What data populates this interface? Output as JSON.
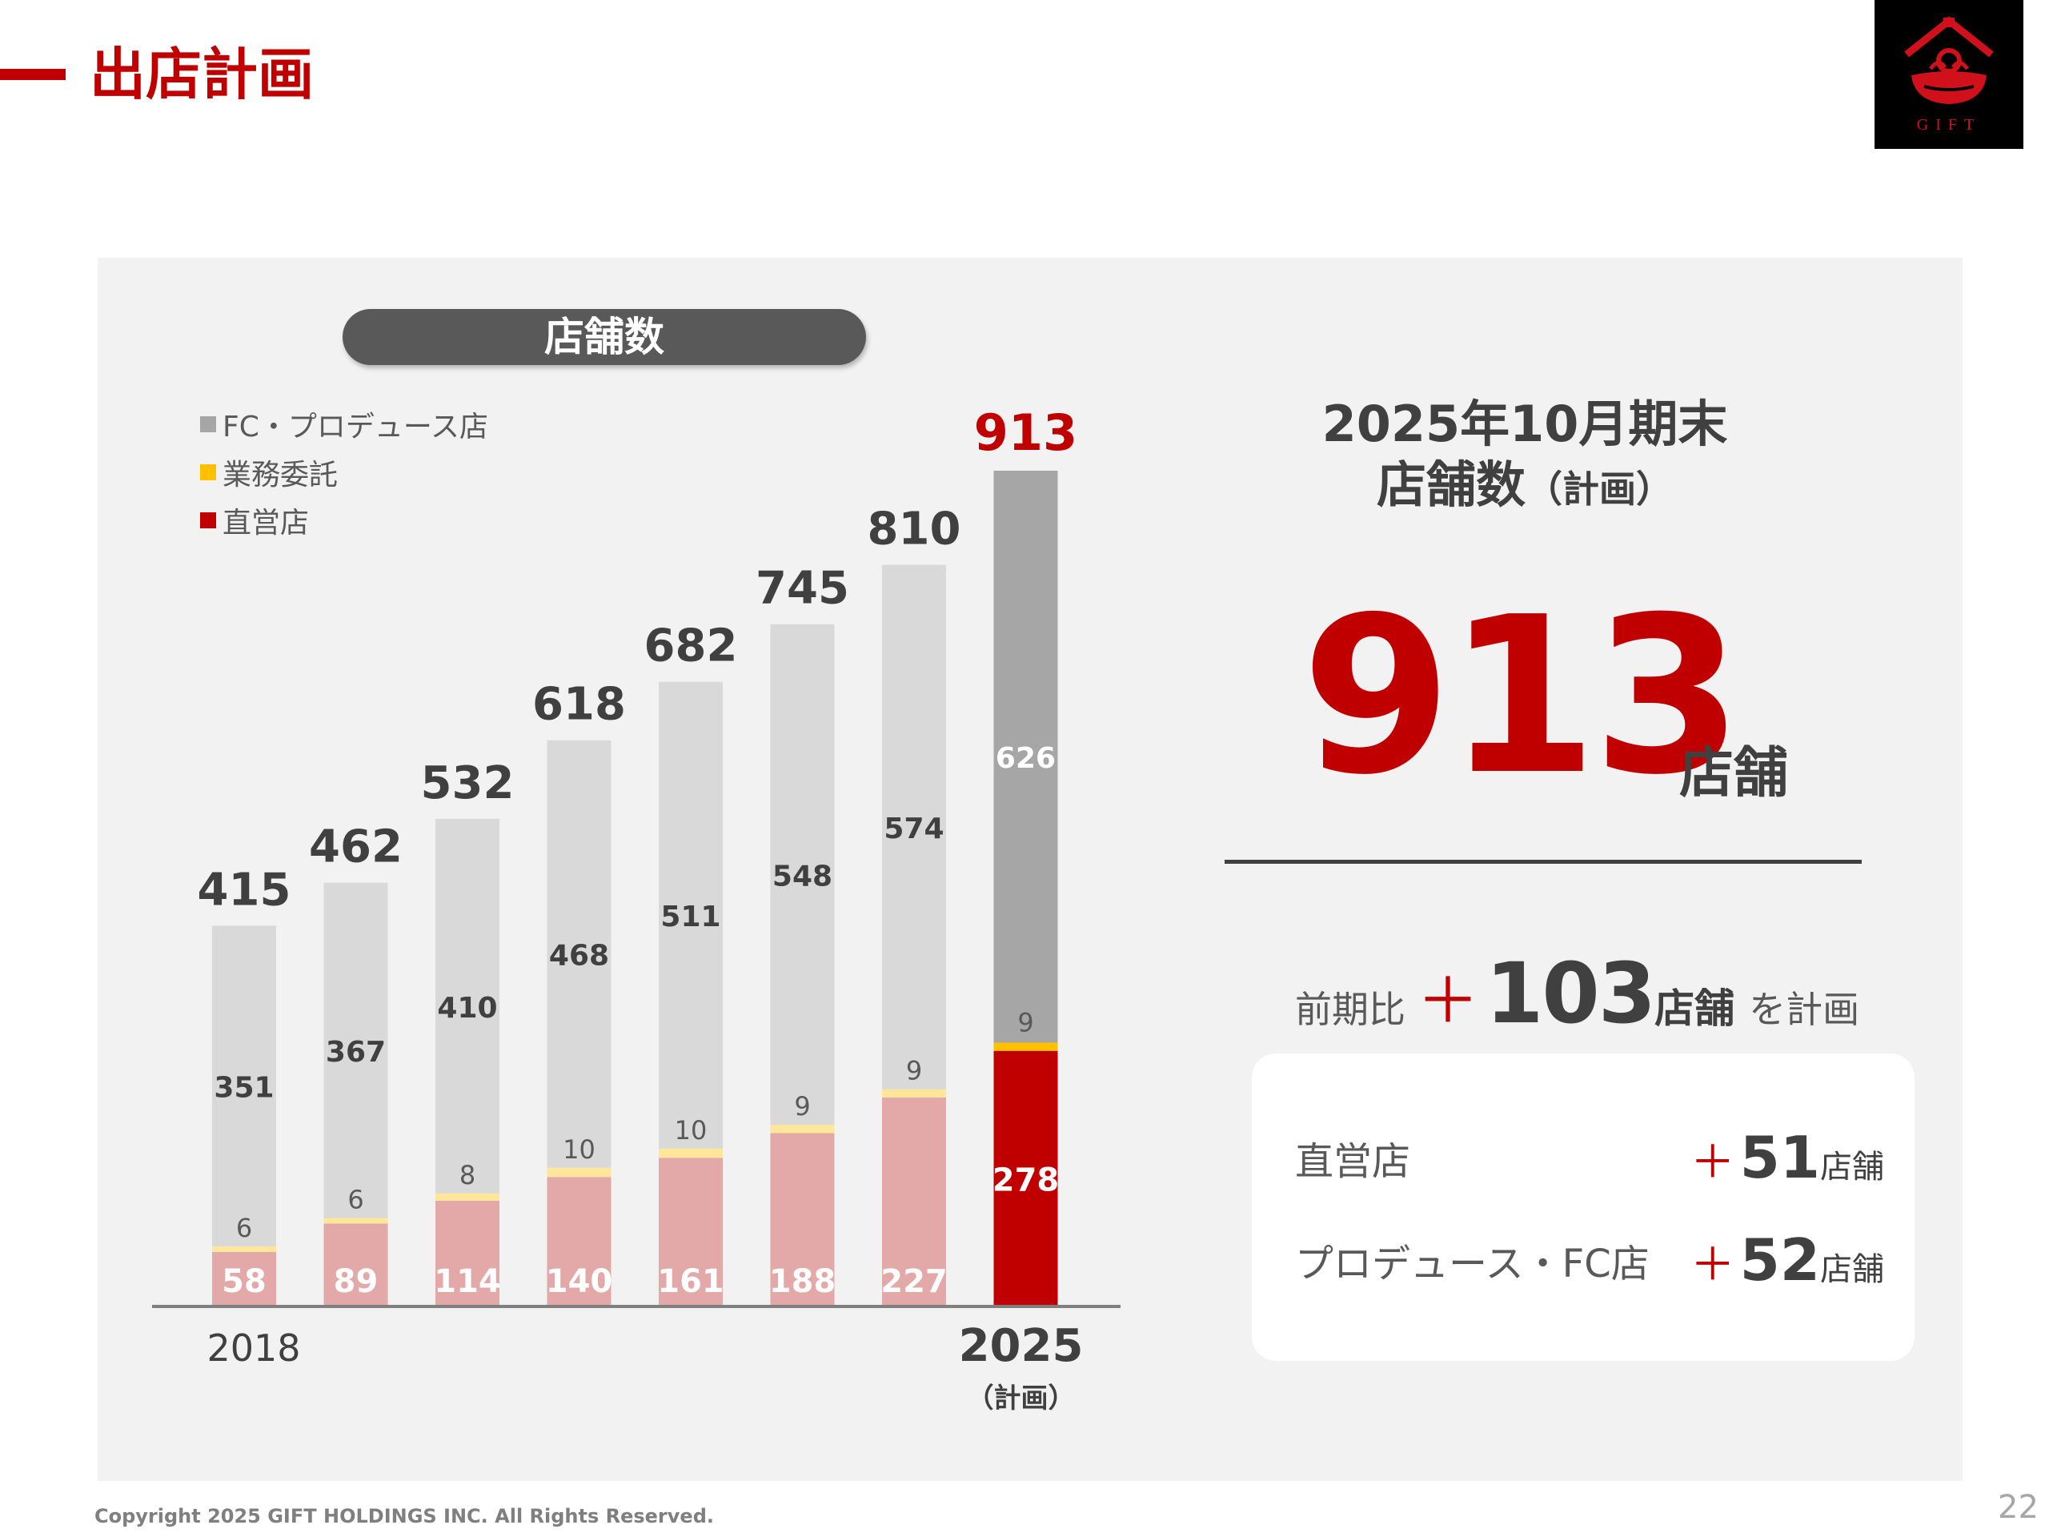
{
  "header": {
    "title": "出店計画"
  },
  "logo": {
    "text": "GIFT",
    "icon": "gift-logo-icon"
  },
  "chart_title": "店舗数",
  "chart_data": {
    "type": "bar",
    "stacked": true,
    "categories": [
      "2018",
      "",
      "",
      "",
      "",
      "",
      "",
      "2025"
    ],
    "category_sublabels": [
      "",
      "",
      "",
      "",
      "",
      "",
      "",
      "（計画）"
    ],
    "series": [
      {
        "name": "直営店",
        "values": [
          58,
          89,
          114,
          140,
          161,
          188,
          227,
          278
        ]
      },
      {
        "name": "業務委託",
        "values": [
          6,
          6,
          8,
          10,
          10,
          9,
          9,
          9
        ]
      },
      {
        "name": "FC・プロデュース店",
        "values": [
          351,
          367,
          410,
          468,
          511,
          548,
          574,
          626
        ]
      }
    ],
    "totals": [
      415,
      462,
      532,
      618,
      682,
      745,
      810,
      913
    ],
    "ylim": [
      0,
      913
    ],
    "legend_placement": "top-left",
    "highlight_last_bar": true,
    "colors": {
      "direct": "#e3a9a9",
      "direct_highlight": "#c00000",
      "consign": "#ffe699",
      "consign_highlight": "#ffc000",
      "fc": "#d9d9d9",
      "fc_highlight": "#a6a6a6",
      "total_text": "#404040",
      "total_highlight": "#c00000"
    }
  },
  "legend": [
    {
      "label": "FC・プロデュース店",
      "color": "#a6a6a6"
    },
    {
      "label": "業務委託",
      "color": "#ffc000"
    },
    {
      "label": "直営店",
      "color": "#c00000"
    }
  ],
  "summary": {
    "heading_line1": "2025年10月期末",
    "heading_line2_main": "店舗数",
    "heading_line2_paren": "（計画）",
    "big_number": "913",
    "big_unit": "店舗",
    "compare_label": "前期比",
    "compare_plus": "＋",
    "compare_number": "103",
    "compare_unit": "店舗",
    "compare_tail": "を計画",
    "rows": [
      {
        "label": "直営店",
        "plus": "＋",
        "number": "51",
        "unit": "店舗"
      },
      {
        "label": "プロデュース・FC店",
        "plus": "＋",
        "number": "52",
        "unit": "店舗"
      }
    ]
  },
  "footer": {
    "copyright": "Copyright 2025 GIFT HOLDINGS INC. All Rights Reserved.",
    "page_number": "22"
  }
}
